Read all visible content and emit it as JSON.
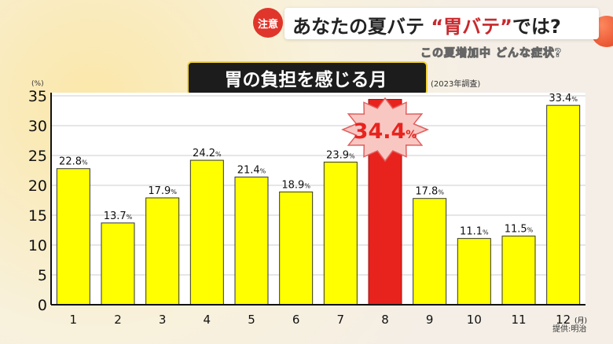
{
  "header": {
    "badge": "注意",
    "title_black": "あなたの夏バテ",
    "title_red": "“胃バテ”",
    "title_tail": "では?",
    "subtitle": "この夏増加中 どんな症状?"
  },
  "chart_data": {
    "type": "bar",
    "title": "胃の負担を感じる月",
    "subtitle": "(2023年調査)",
    "ylabel": "(%)",
    "xunit": "(月)",
    "source": "提供:明治",
    "categories": [
      "1",
      "2",
      "3",
      "4",
      "5",
      "6",
      "7",
      "8",
      "9",
      "10",
      "11",
      "12"
    ],
    "values": [
      22.8,
      13.7,
      17.9,
      24.2,
      21.4,
      18.9,
      23.9,
      34.4,
      17.8,
      11.1,
      11.5,
      33.4
    ],
    "highlight_index": 7,
    "ylim": [
      0,
      35
    ],
    "yticks": [
      0,
      5,
      10,
      15,
      20,
      25,
      30,
      35
    ],
    "grid": true,
    "colors": {
      "bar": "#ffff00",
      "highlight": "#e8231e",
      "label_burst": "#f9c7c2"
    }
  }
}
